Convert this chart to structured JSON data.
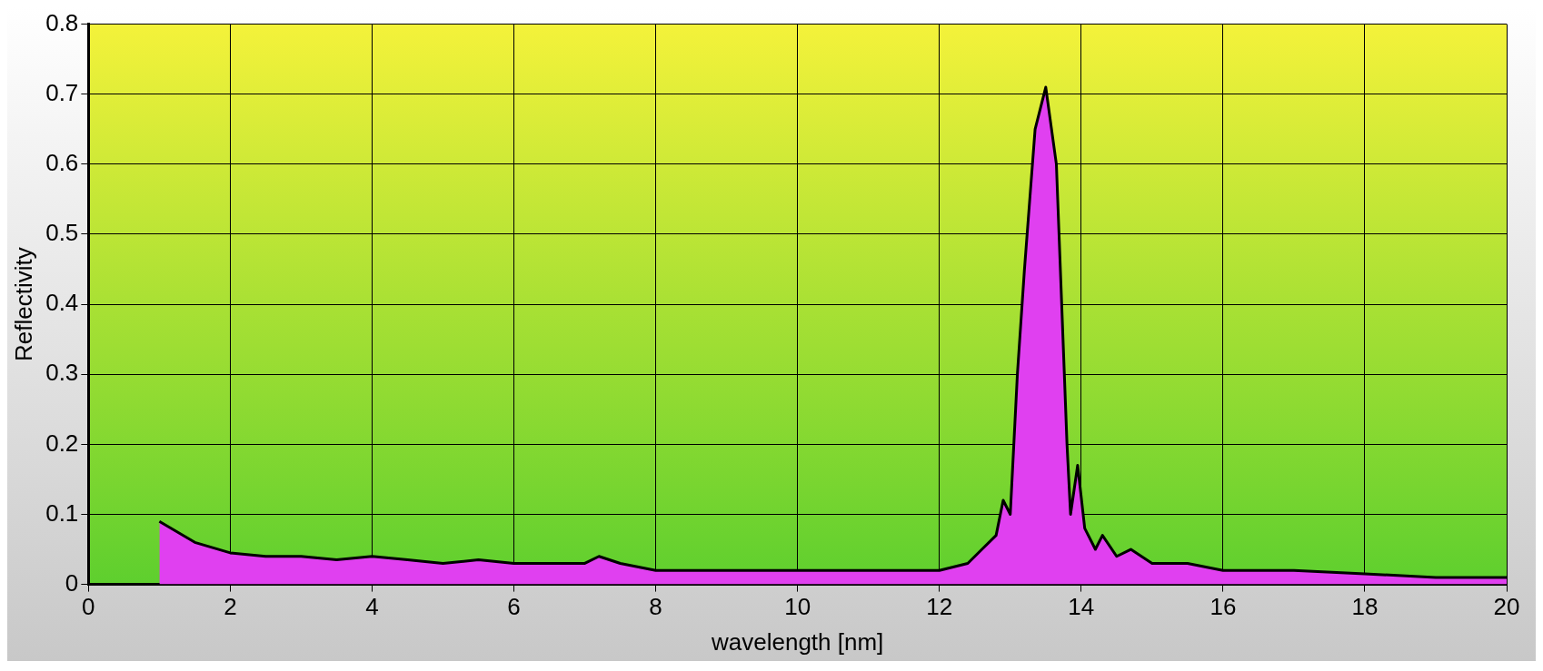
{
  "chart_data": {
    "type": "area",
    "xlabel": "wavelength [nm]",
    "ylabel": "Reflectivity",
    "series": [
      {
        "color": "#e040f0",
        "x": [
          1,
          1.5,
          2,
          2.5,
          3,
          3.5,
          4,
          4.5,
          5,
          5.5,
          6,
          6.5,
          7,
          7.2,
          7.5,
          8,
          9,
          10,
          11,
          12,
          12.4,
          12.6,
          12.8,
          12.9,
          13.0,
          13.1,
          13.2,
          13.35,
          13.5,
          13.65,
          13.8,
          13.85,
          13.95,
          14.05,
          14.2,
          14.3,
          14.5,
          14.7,
          15,
          15.5,
          16,
          17,
          18,
          19,
          20
        ],
        "values": [
          0.09,
          0.06,
          0.045,
          0.04,
          0.04,
          0.035,
          0.04,
          0.035,
          0.03,
          0.035,
          0.03,
          0.03,
          0.03,
          0.04,
          0.03,
          0.02,
          0.02,
          0.02,
          0.02,
          0.02,
          0.03,
          0.05,
          0.07,
          0.12,
          0.1,
          0.3,
          0.45,
          0.65,
          0.71,
          0.6,
          0.2,
          0.1,
          0.17,
          0.08,
          0.05,
          0.07,
          0.04,
          0.05,
          0.03,
          0.03,
          0.02,
          0.02,
          0.015,
          0.01,
          0.01
        ]
      }
    ],
    "xlim": [
      0,
      20
    ],
    "xticks": [
      0,
      2,
      4,
      6,
      8,
      10,
      12,
      14,
      16,
      18,
      20
    ],
    "ylim": [
      0,
      0.8
    ],
    "yticks": [
      0,
      0.1,
      0.2,
      0.3,
      0.4,
      0.5,
      0.6,
      0.7,
      0.8
    ],
    "grid": true,
    "legend": false
  }
}
